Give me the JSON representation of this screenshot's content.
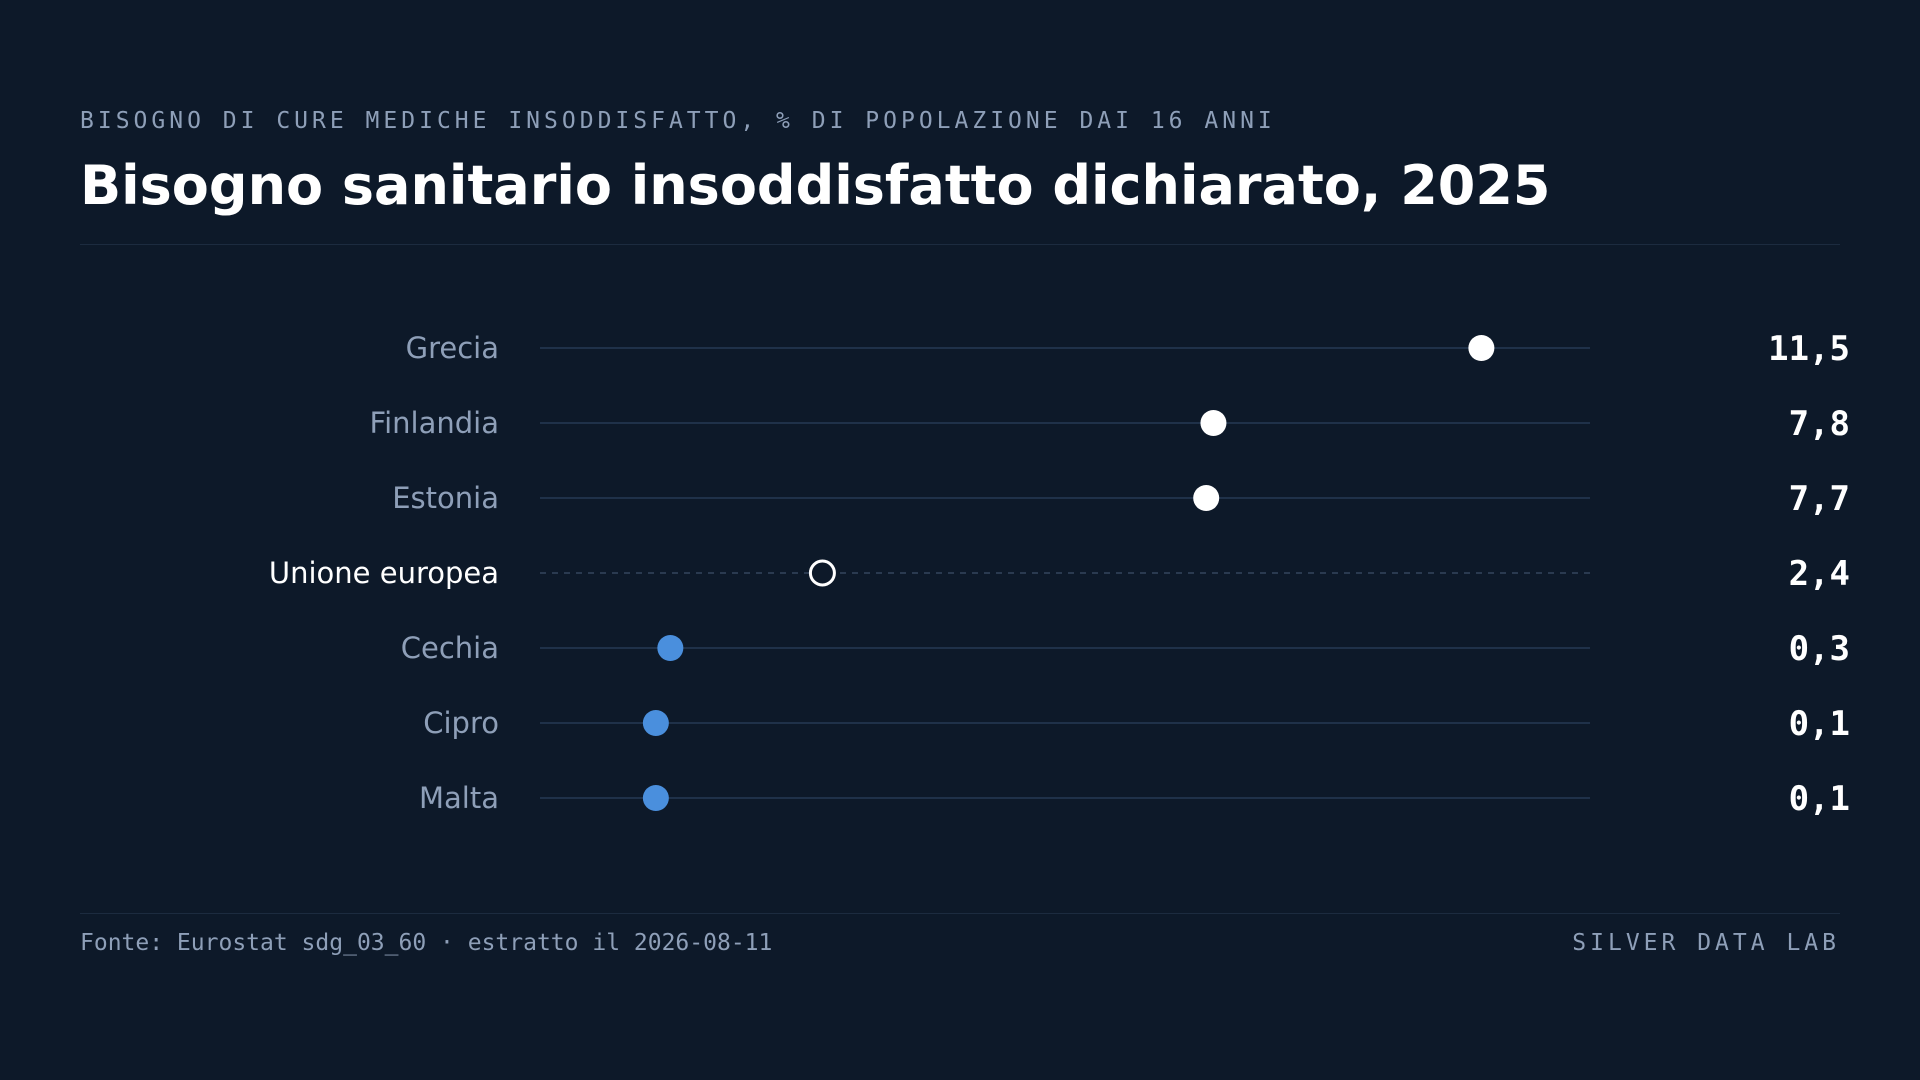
{
  "header": {
    "eyebrow": "BISOGNO DI CURE MEDICHE INSODDISFATTO, % DI POPOLAZIONE DAI 16 ANNI",
    "title": "Bisogno sanitario insoddisfatto dichiarato, 2025"
  },
  "footer": {
    "source": "Fonte: Eurostat sdg_03_60 · estratto il 2026-08-11",
    "brand": "SILVER DATA LAB"
  },
  "colors": {
    "background": "#0d1929",
    "high": "#ffffff",
    "low": "#4a8fdd",
    "reference_stroke": "#ffffff",
    "track": "#1f3149",
    "label": "#8e9fb8"
  },
  "chart_data": {
    "type": "dot",
    "title": "Bisogno sanitario insoddisfatto dichiarato, 2025",
    "subtitle": "BISOGNO DI CURE MEDICHE INSODDISFATTO, % DI POPOLAZIONE DAI 16 ANNI",
    "xlim": [
      -1.5,
      13
    ],
    "categories": [
      "Grecia",
      "Finlandia",
      "Estonia",
      "Unione europea",
      "Cechia",
      "Cipro",
      "Malta"
    ],
    "values": [
      11.5,
      7.8,
      7.7,
      2.4,
      0.3,
      0.1,
      0.1
    ],
    "value_labels": [
      "11,5",
      "7,8",
      "7,7",
      "2,4",
      "0,3",
      "0,1",
      "0,1"
    ],
    "groups": [
      "high",
      "high",
      "high",
      "reference",
      "low",
      "low",
      "low"
    ],
    "reference_category": "Unione europea",
    "grid": false,
    "legend": "none"
  }
}
